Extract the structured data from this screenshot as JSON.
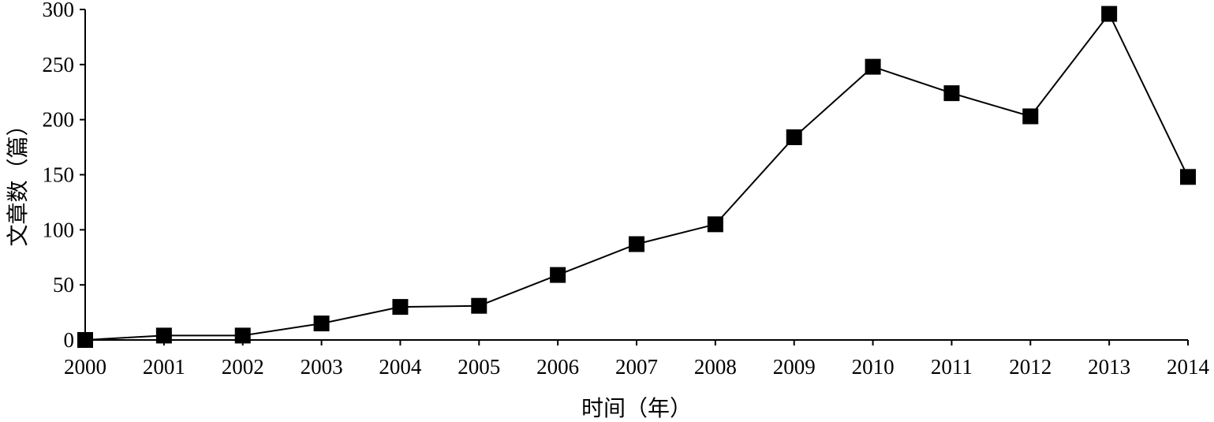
{
  "chart_data": {
    "type": "line",
    "title": "",
    "xlabel": "时间（年）",
    "ylabel": "文章数（篇）",
    "x": [
      2000,
      2001,
      2002,
      2003,
      2004,
      2005,
      2006,
      2007,
      2008,
      2009,
      2010,
      2011,
      2012,
      2013,
      2014
    ],
    "series": [
      {
        "name": "",
        "values": [
          0,
          4,
          4,
          15,
          30,
          31,
          59,
          87,
          105,
          184,
          248,
          224,
          203,
          296,
          148
        ],
        "marker": "square",
        "color": "#000000"
      }
    ],
    "ylim": [
      0,
      300
    ],
    "xlim": [
      2000,
      2014
    ],
    "yticks": [
      0,
      50,
      100,
      150,
      200,
      250,
      300
    ],
    "xticks": [
      2000,
      2001,
      2002,
      2003,
      2004,
      2005,
      2006,
      2007,
      2008,
      2009,
      2010,
      2011,
      2012,
      2013,
      2014
    ],
    "grid": false,
    "legend": "none"
  }
}
